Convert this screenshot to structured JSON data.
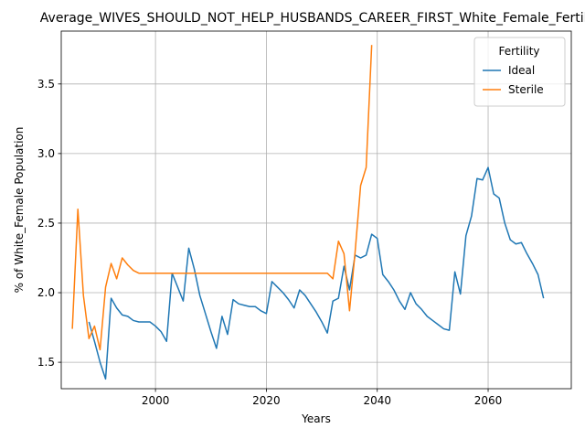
{
  "chart_data": {
    "type": "line",
    "title": "Average_WIVES_SHOULD_NOT_HELP_HUSBANDS_CAREER_FIRST_White_Female_Fertility",
    "xlabel": "Years",
    "ylabel": "% of White_Female Population",
    "xlim": [
      1983,
      2075
    ],
    "ylim": [
      1.31,
      3.88
    ],
    "xticks": [
      2000,
      2020,
      2040,
      2060
    ],
    "yticks": [
      1.5,
      2.0,
      2.5,
      3.0,
      3.5
    ],
    "xtick_labels": [
      "2000",
      "2020",
      "2040",
      "2060"
    ],
    "ytick_labels": [
      "1.5",
      "2.0",
      "2.5",
      "3.0",
      "3.5"
    ],
    "grid": true,
    "legend": {
      "title": "Fertility",
      "placement": "upper right"
    },
    "series": [
      {
        "name": "Ideal",
        "color": "#1f77b4",
        "x": [
          1988,
          1989,
          1990,
          1991,
          1992,
          1993,
          1994,
          1995,
          1996,
          1997,
          1998,
          1999,
          2000,
          2001,
          2002,
          2003,
          2004,
          2005,
          2006,
          2007,
          2008,
          2009,
          2010,
          2011,
          2012,
          2013,
          2014,
          2015,
          2016,
          2017,
          2018,
          2019,
          2020,
          2021,
          2022,
          2023,
          2024,
          2025,
          2026,
          2027,
          2028,
          2029,
          2030,
          2031,
          2032,
          2033,
          2034,
          2035,
          2036,
          2037,
          2038,
          2039,
          2040,
          2041,
          2042,
          2043,
          2044,
          2045,
          2046,
          2047,
          2048,
          2049,
          2050,
          2051,
          2052,
          2053,
          2054,
          2055,
          2056,
          2057,
          2058,
          2059,
          2060,
          2061,
          2062,
          2063,
          2064,
          2065,
          2066,
          2067,
          2068,
          2069,
          2070
        ],
        "y": [
          1.79,
          1.65,
          1.5,
          1.38,
          1.96,
          1.89,
          1.84,
          1.83,
          1.8,
          1.79,
          1.79,
          1.79,
          1.76,
          1.72,
          1.65,
          2.14,
          2.04,
          1.94,
          2.32,
          2.17,
          1.98,
          1.85,
          1.72,
          1.6,
          1.83,
          1.7,
          1.95,
          1.92,
          1.91,
          1.9,
          1.9,
          1.87,
          1.85,
          2.08,
          2.04,
          2.0,
          1.95,
          1.89,
          2.02,
          1.98,
          1.92,
          1.86,
          1.79,
          1.71,
          1.94,
          1.96,
          2.19,
          2.02,
          2.27,
          2.25,
          2.27,
          2.42,
          2.39,
          2.13,
          2.08,
          2.02,
          1.94,
          1.88,
          2.0,
          1.92,
          1.88,
          1.83,
          1.8,
          1.77,
          1.74,
          1.73,
          2.15,
          1.99,
          2.41,
          2.55,
          2.82,
          2.81,
          2.9,
          2.71,
          2.68,
          2.5,
          2.38,
          2.35,
          2.36,
          2.28,
          2.21,
          2.13,
          1.96
        ]
      },
      {
        "name": "Sterile",
        "color": "#ff7f0e",
        "x": [
          1985,
          1986,
          1987,
          1988,
          1989,
          1990,
          1991,
          1992,
          1993,
          1994,
          1995,
          1996,
          1997,
          1998,
          1999,
          2000,
          2005,
          2010,
          2015,
          2020,
          2025,
          2030,
          2031,
          2032,
          2033,
          2034,
          2035,
          2036,
          2037,
          2038,
          2039
        ],
        "y": [
          1.74,
          2.6,
          1.98,
          1.67,
          1.76,
          1.59,
          2.04,
          2.21,
          2.1,
          2.25,
          2.2,
          2.16,
          2.14,
          2.14,
          2.14,
          2.14,
          2.14,
          2.14,
          2.14,
          2.14,
          2.14,
          2.14,
          2.14,
          2.1,
          2.37,
          2.28,
          1.87,
          2.29,
          2.77,
          2.9,
          3.78
        ]
      }
    ]
  }
}
